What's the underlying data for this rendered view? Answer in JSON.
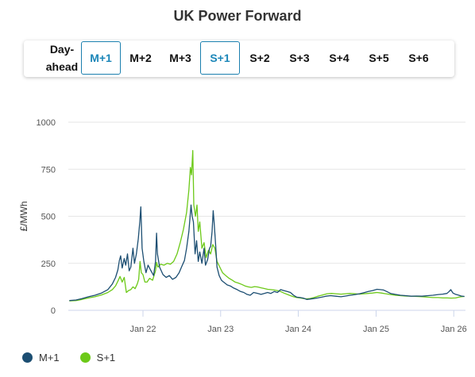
{
  "title": "UK Power Forward",
  "tabs": [
    {
      "label": "Day-\nahead",
      "active": false
    },
    {
      "label": "M+1",
      "active": true
    },
    {
      "label": "M+2",
      "active": false
    },
    {
      "label": "M+3",
      "active": false
    },
    {
      "label": "S+1",
      "active": true
    },
    {
      "label": "S+2",
      "active": false
    },
    {
      "label": "S+3",
      "active": false
    },
    {
      "label": "S+4",
      "active": false
    },
    {
      "label": "S+5",
      "active": false
    },
    {
      "label": "S+6",
      "active": false
    }
  ],
  "legend": [
    {
      "label": "M+1",
      "color": "#1c4e72"
    },
    {
      "label": "S+1",
      "color": "#6cc918"
    }
  ],
  "chart_data": {
    "type": "line",
    "ylabel": "£/MWh",
    "ylim": [
      0,
      1000
    ],
    "yticks": [
      0,
      250,
      500,
      750,
      1000
    ],
    "xlim": [
      "2021-01-15",
      "2026-02-25"
    ],
    "xticks": [
      {
        "date": "2022-01-01",
        "label": "Jan 22"
      },
      {
        "date": "2023-01-01",
        "label": "Jan 23"
      },
      {
        "date": "2024-01-01",
        "label": "Jan 24"
      },
      {
        "date": "2025-01-01",
        "label": "Jan 25"
      },
      {
        "date": "2026-01-01",
        "label": "Jan 26"
      }
    ],
    "grid": true,
    "legend_position": "bottom-left",
    "series": [
      {
        "name": "M+1",
        "color": "#1c4e72",
        "points": [
          [
            "2021-01-20",
            52
          ],
          [
            "2021-02-20",
            55
          ],
          [
            "2021-03-20",
            62
          ],
          [
            "2021-04-20",
            72
          ],
          [
            "2021-05-20",
            80
          ],
          [
            "2021-06-20",
            92
          ],
          [
            "2021-07-20",
            110
          ],
          [
            "2021-08-10",
            140
          ],
          [
            "2021-08-25",
            175
          ],
          [
            "2021-09-05",
            215
          ],
          [
            "2021-09-12",
            265
          ],
          [
            "2021-09-18",
            290
          ],
          [
            "2021-09-25",
            225
          ],
          [
            "2021-10-05",
            275
          ],
          [
            "2021-10-12",
            240
          ],
          [
            "2021-10-20",
            300
          ],
          [
            "2021-10-28",
            210
          ],
          [
            "2021-11-05",
            230
          ],
          [
            "2021-11-15",
            330
          ],
          [
            "2021-11-22",
            250
          ],
          [
            "2021-12-01",
            300
          ],
          [
            "2021-12-10",
            380
          ],
          [
            "2021-12-17",
            470
          ],
          [
            "2021-12-22",
            550
          ],
          [
            "2021-12-28",
            330
          ],
          [
            "2022-01-05",
            260
          ],
          [
            "2022-01-15",
            200
          ],
          [
            "2022-01-25",
            240
          ],
          [
            "2022-02-05",
            215
          ],
          [
            "2022-02-20",
            185
          ],
          [
            "2022-03-01",
            260
          ],
          [
            "2022-03-06",
            410
          ],
          [
            "2022-03-10",
            300
          ],
          [
            "2022-03-20",
            230
          ],
          [
            "2022-04-05",
            190
          ],
          [
            "2022-04-20",
            175
          ],
          [
            "2022-05-05",
            185
          ],
          [
            "2022-05-20",
            165
          ],
          [
            "2022-06-05",
            175
          ],
          [
            "2022-06-20",
            200
          ],
          [
            "2022-07-01",
            230
          ],
          [
            "2022-07-15",
            265
          ],
          [
            "2022-07-25",
            330
          ],
          [
            "2022-08-05",
            420
          ],
          [
            "2022-08-15",
            560
          ],
          [
            "2022-08-20",
            500
          ],
          [
            "2022-08-26",
            470
          ],
          [
            "2022-09-03",
            300
          ],
          [
            "2022-09-10",
            370
          ],
          [
            "2022-09-18",
            260
          ],
          [
            "2022-09-25",
            310
          ],
          [
            "2022-10-05",
            250
          ],
          [
            "2022-10-15",
            330
          ],
          [
            "2022-10-22",
            240
          ],
          [
            "2022-11-01",
            270
          ],
          [
            "2022-11-10",
            330
          ],
          [
            "2022-11-15",
            340
          ],
          [
            "2022-11-22",
            420
          ],
          [
            "2022-11-27",
            530
          ],
          [
            "2022-12-02",
            460
          ],
          [
            "2022-12-08",
            360
          ],
          [
            "2022-12-15",
            230
          ],
          [
            "2022-12-25",
            185
          ],
          [
            "2023-01-05",
            160
          ],
          [
            "2023-01-15",
            150
          ],
          [
            "2023-02-01",
            135
          ],
          [
            "2023-02-15",
            130
          ],
          [
            "2023-03-01",
            120
          ],
          [
            "2023-03-20",
            110
          ],
          [
            "2023-04-05",
            100
          ],
          [
            "2023-04-20",
            95
          ],
          [
            "2023-05-05",
            85
          ],
          [
            "2023-05-20",
            80
          ],
          [
            "2023-06-05",
            95
          ],
          [
            "2023-06-25",
            90
          ],
          [
            "2023-07-10",
            85
          ],
          [
            "2023-07-25",
            90
          ],
          [
            "2023-08-10",
            95
          ],
          [
            "2023-08-25",
            90
          ],
          [
            "2023-09-10",
            100
          ],
          [
            "2023-09-25",
            95
          ],
          [
            "2023-10-10",
            110
          ],
          [
            "2023-10-25",
            105
          ],
          [
            "2023-11-10",
            100
          ],
          [
            "2023-11-25",
            95
          ],
          [
            "2023-12-10",
            80
          ],
          [
            "2023-12-25",
            70
          ],
          [
            "2024-01-10",
            68
          ],
          [
            "2024-01-25",
            65
          ],
          [
            "2024-02-10",
            58
          ],
          [
            "2024-02-25",
            60
          ],
          [
            "2024-03-10",
            62
          ],
          [
            "2024-04-01",
            66
          ],
          [
            "2024-04-20",
            70
          ],
          [
            "2024-05-10",
            75
          ],
          [
            "2024-06-01",
            78
          ],
          [
            "2024-06-25",
            75
          ],
          [
            "2024-07-20",
            72
          ],
          [
            "2024-08-10",
            76
          ],
          [
            "2024-09-01",
            80
          ],
          [
            "2024-09-25",
            84
          ],
          [
            "2024-10-15",
            88
          ],
          [
            "2024-11-05",
            94
          ],
          [
            "2024-11-25",
            100
          ],
          [
            "2024-12-15",
            105
          ],
          [
            "2025-01-05",
            112
          ],
          [
            "2025-01-20",
            110
          ],
          [
            "2025-02-05",
            108
          ],
          [
            "2025-02-20",
            100
          ],
          [
            "2025-03-10",
            90
          ],
          [
            "2025-04-01",
            85
          ],
          [
            "2025-04-25",
            80
          ],
          [
            "2025-05-20",
            78
          ],
          [
            "2025-06-15",
            75
          ],
          [
            "2025-07-10",
            76
          ],
          [
            "2025-08-05",
            75
          ],
          [
            "2025-09-01",
            78
          ],
          [
            "2025-09-25",
            80
          ],
          [
            "2025-10-20",
            84
          ],
          [
            "2025-11-10",
            86
          ],
          [
            "2025-11-30",
            90
          ],
          [
            "2025-12-10",
            100
          ],
          [
            "2025-12-18",
            110
          ],
          [
            "2025-12-28",
            92
          ],
          [
            "2026-01-10",
            85
          ],
          [
            "2026-01-25",
            80
          ],
          [
            "2026-02-05",
            76
          ],
          [
            "2026-02-20",
            74
          ]
        ]
      },
      {
        "name": "S+1",
        "color": "#6cc918",
        "points": [
          [
            "2021-01-20",
            50
          ],
          [
            "2021-02-20",
            52
          ],
          [
            "2021-03-20",
            58
          ],
          [
            "2021-04-20",
            66
          ],
          [
            "2021-05-20",
            72
          ],
          [
            "2021-06-20",
            82
          ],
          [
            "2021-07-20",
            95
          ],
          [
            "2021-08-10",
            110
          ],
          [
            "2021-08-25",
            130
          ],
          [
            "2021-09-05",
            155
          ],
          [
            "2021-09-15",
            180
          ],
          [
            "2021-09-25",
            150
          ],
          [
            "2021-10-05",
            175
          ],
          [
            "2021-10-15",
            95
          ],
          [
            "2021-10-25",
            105
          ],
          [
            "2021-11-05",
            110
          ],
          [
            "2021-11-15",
            125
          ],
          [
            "2021-11-25",
            115
          ],
          [
            "2021-12-05",
            140
          ],
          [
            "2021-12-12",
            165
          ],
          [
            "2021-12-18",
            260
          ],
          [
            "2021-12-24",
            200
          ],
          [
            "2022-01-01",
            190
          ],
          [
            "2022-01-10",
            150
          ],
          [
            "2022-01-20",
            150
          ],
          [
            "2022-02-01",
            170
          ],
          [
            "2022-02-15",
            160
          ],
          [
            "2022-03-01",
            210
          ],
          [
            "2022-03-06",
            255
          ],
          [
            "2022-03-12",
            230
          ],
          [
            "2022-03-25",
            245
          ],
          [
            "2022-04-10",
            240
          ],
          [
            "2022-04-25",
            250
          ],
          [
            "2022-05-10",
            245
          ],
          [
            "2022-05-25",
            260
          ],
          [
            "2022-06-10",
            300
          ],
          [
            "2022-06-25",
            360
          ],
          [
            "2022-07-10",
            430
          ],
          [
            "2022-07-25",
            520
          ],
          [
            "2022-08-05",
            640
          ],
          [
            "2022-08-12",
            760
          ],
          [
            "2022-08-17",
            720
          ],
          [
            "2022-08-23",
            850
          ],
          [
            "2022-08-28",
            560
          ],
          [
            "2022-09-05",
            500
          ],
          [
            "2022-09-12",
            560
          ],
          [
            "2022-09-18",
            420
          ],
          [
            "2022-09-25",
            470
          ],
          [
            "2022-10-05",
            330
          ],
          [
            "2022-10-15",
            360
          ],
          [
            "2022-10-25",
            280
          ],
          [
            "2022-11-05",
            320
          ],
          [
            "2022-11-15",
            300
          ],
          [
            "2022-11-25",
            350
          ],
          [
            "2022-12-05",
            330
          ],
          [
            "2022-12-15",
            260
          ],
          [
            "2022-12-28",
            230
          ],
          [
            "2023-01-10",
            200
          ],
          [
            "2023-01-25",
            185
          ],
          [
            "2023-02-10",
            170
          ],
          [
            "2023-02-25",
            160
          ],
          [
            "2023-03-10",
            150
          ],
          [
            "2023-03-25",
            145
          ],
          [
            "2023-04-10",
            138
          ],
          [
            "2023-04-25",
            130
          ],
          [
            "2023-05-10",
            125
          ],
          [
            "2023-05-25",
            122
          ],
          [
            "2023-06-10",
            126
          ],
          [
            "2023-06-25",
            124
          ],
          [
            "2023-07-10",
            120
          ],
          [
            "2023-07-25",
            116
          ],
          [
            "2023-08-10",
            112
          ],
          [
            "2023-08-25",
            110
          ],
          [
            "2023-09-10",
            108
          ],
          [
            "2023-09-25",
            105
          ],
          [
            "2023-10-10",
            100
          ],
          [
            "2023-10-25",
            92
          ],
          [
            "2023-11-10",
            85
          ],
          [
            "2023-11-25",
            78
          ],
          [
            "2023-12-10",
            72
          ],
          [
            "2023-12-25",
            68
          ],
          [
            "2024-01-10",
            66
          ],
          [
            "2024-01-25",
            63
          ],
          [
            "2024-02-10",
            61
          ],
          [
            "2024-02-25",
            63
          ],
          [
            "2024-03-15",
            68
          ],
          [
            "2024-04-05",
            76
          ],
          [
            "2024-04-25",
            82
          ],
          [
            "2024-05-15",
            88
          ],
          [
            "2024-06-05",
            90
          ],
          [
            "2024-06-25",
            88
          ],
          [
            "2024-07-20",
            86
          ],
          [
            "2024-08-10",
            88
          ],
          [
            "2024-09-01",
            90
          ],
          [
            "2024-09-25",
            88
          ],
          [
            "2024-10-15",
            86
          ],
          [
            "2024-11-05",
            88
          ],
          [
            "2024-11-25",
            90
          ],
          [
            "2024-12-15",
            92
          ],
          [
            "2025-01-05",
            95
          ],
          [
            "2025-01-25",
            92
          ],
          [
            "2025-02-15",
            88
          ],
          [
            "2025-03-10",
            84
          ],
          [
            "2025-04-01",
            80
          ],
          [
            "2025-04-25",
            78
          ],
          [
            "2025-05-20",
            76
          ],
          [
            "2025-06-15",
            75
          ],
          [
            "2025-07-10",
            74
          ],
          [
            "2025-08-05",
            72
          ],
          [
            "2025-09-01",
            70
          ],
          [
            "2025-09-25",
            68
          ],
          [
            "2025-10-20",
            68
          ],
          [
            "2025-11-10",
            66
          ],
          [
            "2025-12-01",
            66
          ],
          [
            "2025-12-20",
            65
          ],
          [
            "2026-01-10",
            66
          ],
          [
            "2026-01-25",
            70
          ],
          [
            "2026-02-05",
            72
          ],
          [
            "2026-02-20",
            74
          ]
        ]
      }
    ]
  }
}
